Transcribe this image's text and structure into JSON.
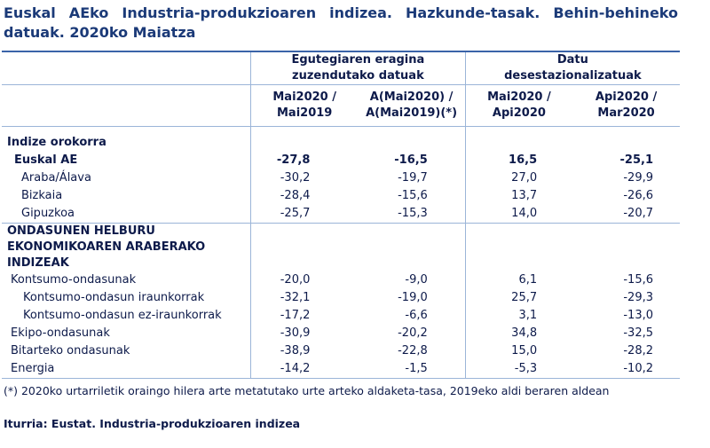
{
  "title": "Euskal AEko Industria-produkzioaren indizea. Hazkunde-tasak. Behin-behineko datuak. 2020ko Maiatza",
  "table": {
    "groups": [
      "Egutegiaren eragina\nzuzendutako datuak",
      "Datu\ndesestazionalizatuak"
    ],
    "columns": [
      "Mai2020 /\nMai2019",
      "A(Mai2020) /\nA(Mai2019)(*)",
      "Mai2020 /\nApi2020",
      "Api2020 /\nMar2020"
    ],
    "rows": [
      {
        "label": "Indize orokorra"
      },
      {
        "label": "Euskal AE",
        "values": [
          "-27,8",
          "-16,5",
          "16,5",
          "-25,1"
        ]
      },
      {
        "label": "Araba/Álava",
        "values": [
          "-30,2",
          "-19,7",
          "27,0",
          "-29,9"
        ]
      },
      {
        "label": "Bizkaia",
        "values": [
          "-28,4",
          "-15,6",
          "13,7",
          "-26,6"
        ]
      },
      {
        "label": "Gipuzkoa",
        "values": [
          "-25,7",
          "-15,3",
          "14,0",
          "-20,7"
        ]
      },
      {
        "label": "ONDASUNEN HELBURU EKONOMIKOAREN ARABERAKO INDIZEAK"
      },
      {
        "label": "Kontsumo-ondasunak",
        "values": [
          "-20,0",
          "-9,0",
          "6,1",
          "-15,6"
        ]
      },
      {
        "label": "Kontsumo-ondasun iraunkorrak",
        "values": [
          "-32,1",
          "-19,0",
          "25,7",
          "-29,3"
        ]
      },
      {
        "label": "Kontsumo-ondasun ez-iraunkorrak",
        "values": [
          "-17,2",
          "-6,6",
          "3,1",
          "-13,0"
        ]
      },
      {
        "label": "Ekipo-ondasunak",
        "values": [
          "-30,9",
          "-20,2",
          "34,8",
          "-32,5"
        ]
      },
      {
        "label": "Bitarteko ondasunak",
        "values": [
          "-38,9",
          "-22,8",
          "15,0",
          "-28,2"
        ]
      },
      {
        "label": "Energia",
        "values": [
          "-14,2",
          "-1,5",
          "-5,3",
          "-10,2"
        ]
      }
    ]
  },
  "footnote": "(*) 2020ko urtarriletik oraingo hilera arte metatutako urte arteko aldaketa-tasa, 2019eko aldi beraren aldean",
  "source": "Iturria: Eustat. Industria-produkzioaren indizea"
}
